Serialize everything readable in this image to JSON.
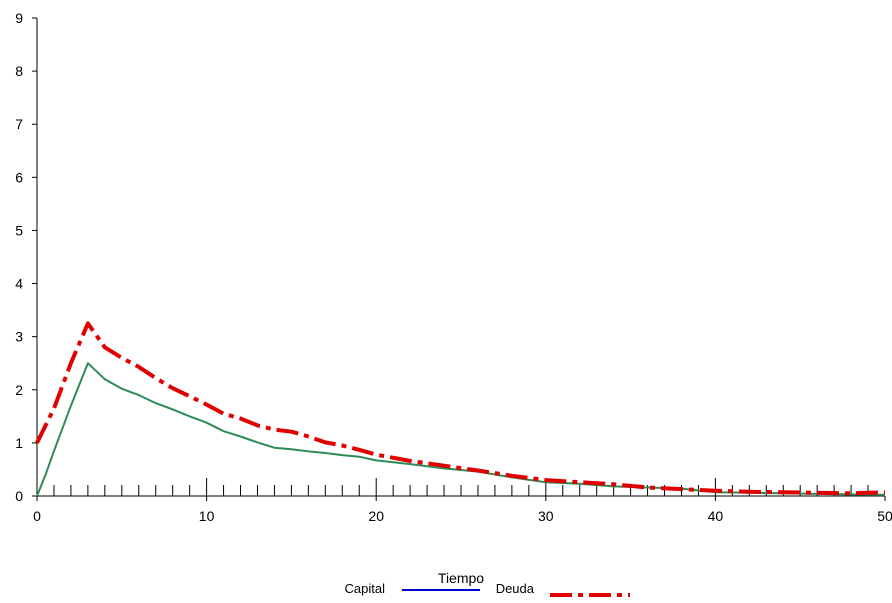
{
  "chart_data": {
    "type": "line",
    "title": "",
    "xlabel": "Tiempo",
    "ylabel": "",
    "xlim": [
      0,
      50
    ],
    "ylim": [
      0,
      9
    ],
    "xticks": [
      0,
      10,
      20,
      30,
      40,
      50
    ],
    "yticks": [
      0,
      1,
      2,
      3,
      4,
      5,
      6,
      7,
      8,
      9
    ],
    "grid": false,
    "legend_position": "bottom",
    "series": [
      {
        "name": "Capital",
        "color": "#2e8b57",
        "legend_color": "#0000cc",
        "style": "solid",
        "x": [
          0,
          0.5,
          1,
          2,
          3,
          4,
          5,
          6,
          7,
          8,
          9,
          10,
          11,
          12,
          13,
          14,
          15,
          16,
          17,
          18,
          19,
          20,
          22,
          24,
          26,
          28,
          30,
          32,
          34,
          36,
          38,
          40,
          42,
          44,
          46,
          48,
          50
        ],
        "y": [
          0,
          0.4,
          0.85,
          1.7,
          2.5,
          2.2,
          2.02,
          1.9,
          1.75,
          1.63,
          1.5,
          1.38,
          1.22,
          1.12,
          1.01,
          0.91,
          0.88,
          0.84,
          0.81,
          0.77,
          0.74,
          0.67,
          0.6,
          0.52,
          0.46,
          0.35,
          0.26,
          0.23,
          0.18,
          0.16,
          0.14,
          0.07,
          0.06,
          0.05,
          0.04,
          0.03,
          0.02
        ]
      },
      {
        "name": "Deuda",
        "color": "#e00000",
        "style": "dash-dot",
        "x": [
          0,
          1,
          2,
          3,
          4,
          5,
          6,
          7,
          8,
          9,
          10,
          11,
          12,
          13,
          14,
          15,
          16,
          17,
          18,
          19,
          20,
          22,
          24,
          26,
          28,
          30,
          32,
          34,
          36,
          38,
          40,
          42,
          44,
          46,
          48,
          50
        ],
        "y": [
          1.0,
          1.65,
          2.5,
          3.25,
          2.8,
          2.6,
          2.43,
          2.22,
          2.03,
          1.88,
          1.72,
          1.55,
          1.46,
          1.33,
          1.25,
          1.21,
          1.12,
          1.01,
          0.95,
          0.87,
          0.78,
          0.66,
          0.57,
          0.48,
          0.38,
          0.3,
          0.26,
          0.22,
          0.16,
          0.13,
          0.1,
          0.08,
          0.07,
          0.06,
          0.05,
          0.07
        ]
      }
    ]
  }
}
